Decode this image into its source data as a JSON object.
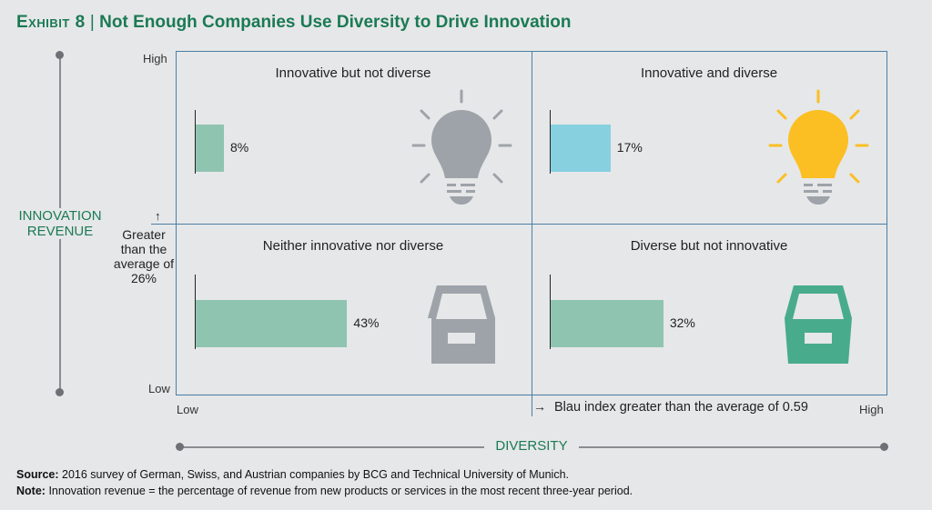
{
  "header": {
    "exhibit": "Exhibit 8",
    "separator": "|",
    "title": "Not Enough Companies Use Diversity to Drive Innovation"
  },
  "chart_data": {
    "type": "bar",
    "title": "Not Enough Companies Use Diversity to Drive Innovation",
    "xlabel": "DIVERSITY",
    "ylabel": "INNOVATION REVENUE",
    "x_ticks": [
      "Low",
      "High"
    ],
    "y_ticks": [
      "High",
      "Low"
    ],
    "x_threshold_label": "Blau index greater than the average of 0.59",
    "y_threshold_label": "Greater than the average of 26%",
    "quadrants": [
      {
        "name": "Innovative but not diverse",
        "value": 8,
        "label": "8%",
        "color": "#8fc4b1",
        "icon": "lightbulb-gray"
      },
      {
        "name": "Innovative and diverse",
        "value": 17,
        "label": "17%",
        "color": "#86d0e0",
        "icon": "lightbulb-yellow"
      },
      {
        "name": "Neither innovative nor diverse",
        "value": 43,
        "label": "43%",
        "color": "#8fc4b1",
        "icon": "archive-box-gray"
      },
      {
        "name": "Diverse but not innovative",
        "value": 32,
        "label": "32%",
        "color": "#8fc4b1",
        "icon": "archive-box-green"
      }
    ]
  },
  "colors": {
    "accent": "#1a7a55",
    "grid": "#4a7ea6",
    "bulb_gray": "#9ea3a9",
    "bulb_yellow": "#fbbf24",
    "box_green": "#48ab8c"
  },
  "footer": {
    "source_label": "Source:",
    "source": "2016 survey of German, Swiss, and Austrian companies by BCG and Technical University of Munich.",
    "note_label": "Note:",
    "note": "Innovation revenue = the percentage of revenue from new products or services in the most recent three-year period."
  }
}
